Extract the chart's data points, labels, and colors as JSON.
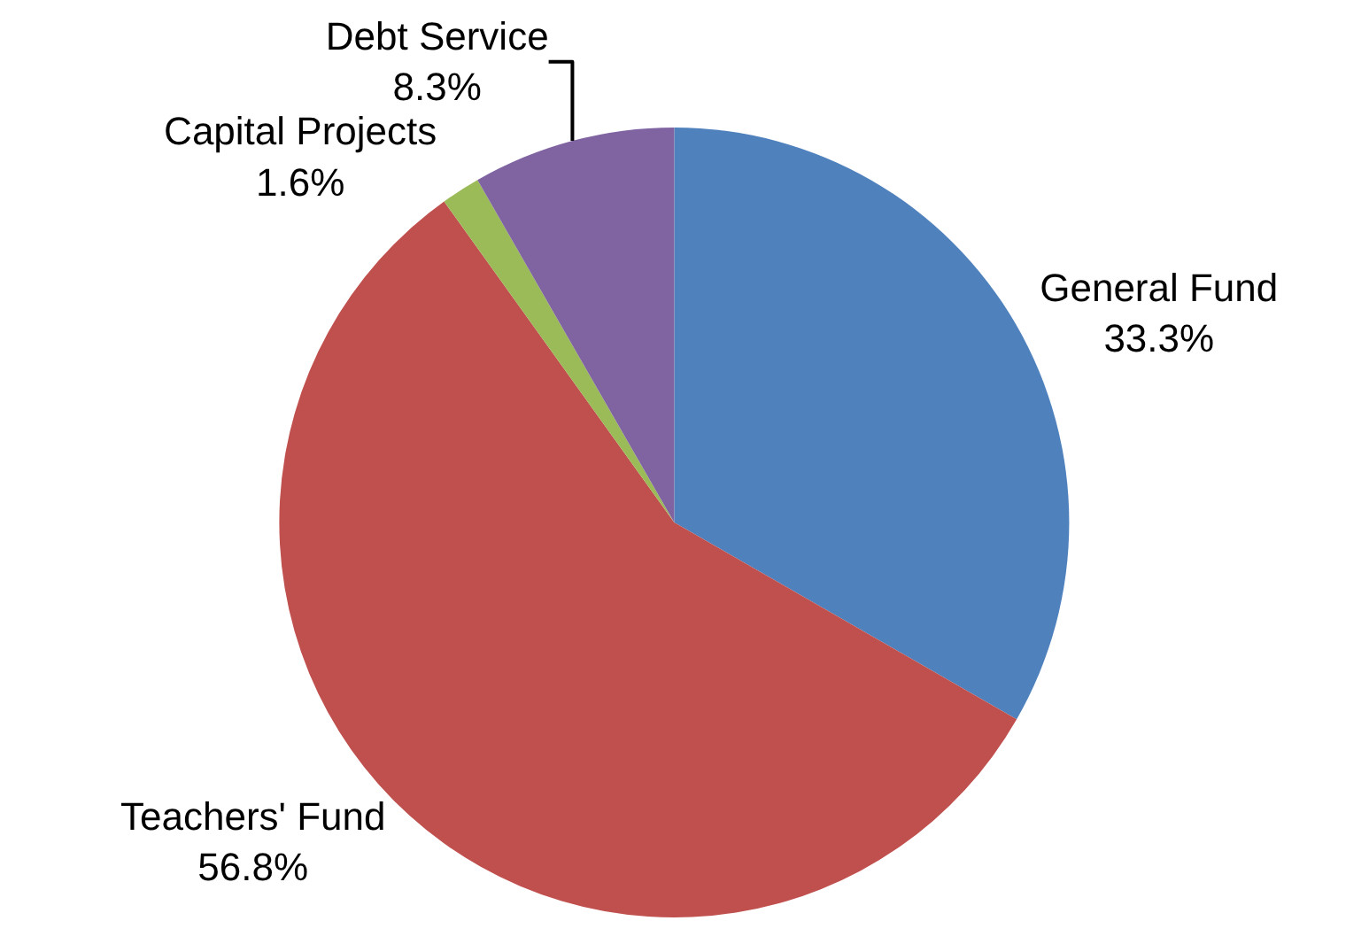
{
  "chart_data": {
    "type": "pie",
    "categories": [
      "General Fund",
      "Teachers' Fund",
      "Capital Projects",
      "Debt Service"
    ],
    "values": [
      33.3,
      56.8,
      1.6,
      8.3
    ],
    "value_labels": [
      "33.3%",
      "56.8%",
      "1.6%",
      "8.3%"
    ],
    "colors": [
      "#4f81bd",
      "#c0504d",
      "#9bbb59",
      "#8064a2"
    ],
    "legend": false
  }
}
